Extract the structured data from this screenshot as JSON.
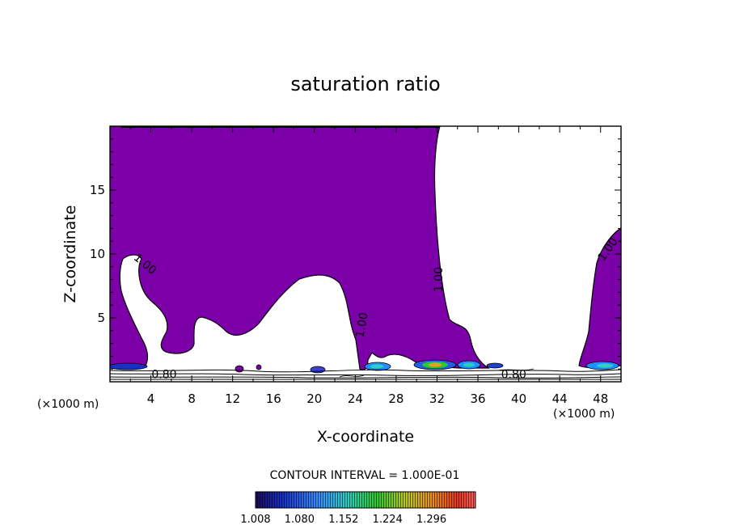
{
  "chart_data": {
    "type": "contour",
    "title": "saturation ratio",
    "xlabel": "X-coordinate",
    "ylabel": "Z-coordinate",
    "x_unit": "(×1000 m)",
    "xlim": [
      0,
      50
    ],
    "ylim": [
      0,
      20
    ],
    "xticks": [
      4,
      8,
      12,
      16,
      20,
      24,
      28,
      32,
      36,
      40,
      44,
      48
    ],
    "yticks": [
      5,
      10,
      15
    ],
    "contour_labels": [
      {
        "text": "1.00",
        "x": 3.2,
        "y": 9.0,
        "rotate": 40
      },
      {
        "text": "1.00",
        "x": 32.5,
        "y": 8.0,
        "rotate": -90
      },
      {
        "text": "1.00",
        "x": 25.0,
        "y": 4.4,
        "rotate": -80
      },
      {
        "text": "1.00",
        "x": 49.0,
        "y": 10.2,
        "rotate": -55
      },
      {
        "text": "0.80",
        "x": 5.3,
        "y": 0.3,
        "rotate": 0
      },
      {
        "text": "0.80",
        "x": 39.5,
        "y": 0.3,
        "rotate": 0
      }
    ],
    "contour_interval": "CONTOUR INTERVAL = 1.000E-01",
    "colorbar": {
      "ticks": [
        "1.008",
        "1.080",
        "1.152",
        "1.224",
        "1.296"
      ],
      "min": 1.008,
      "max": 1.296
    },
    "fill_color": "#7b00a8"
  }
}
